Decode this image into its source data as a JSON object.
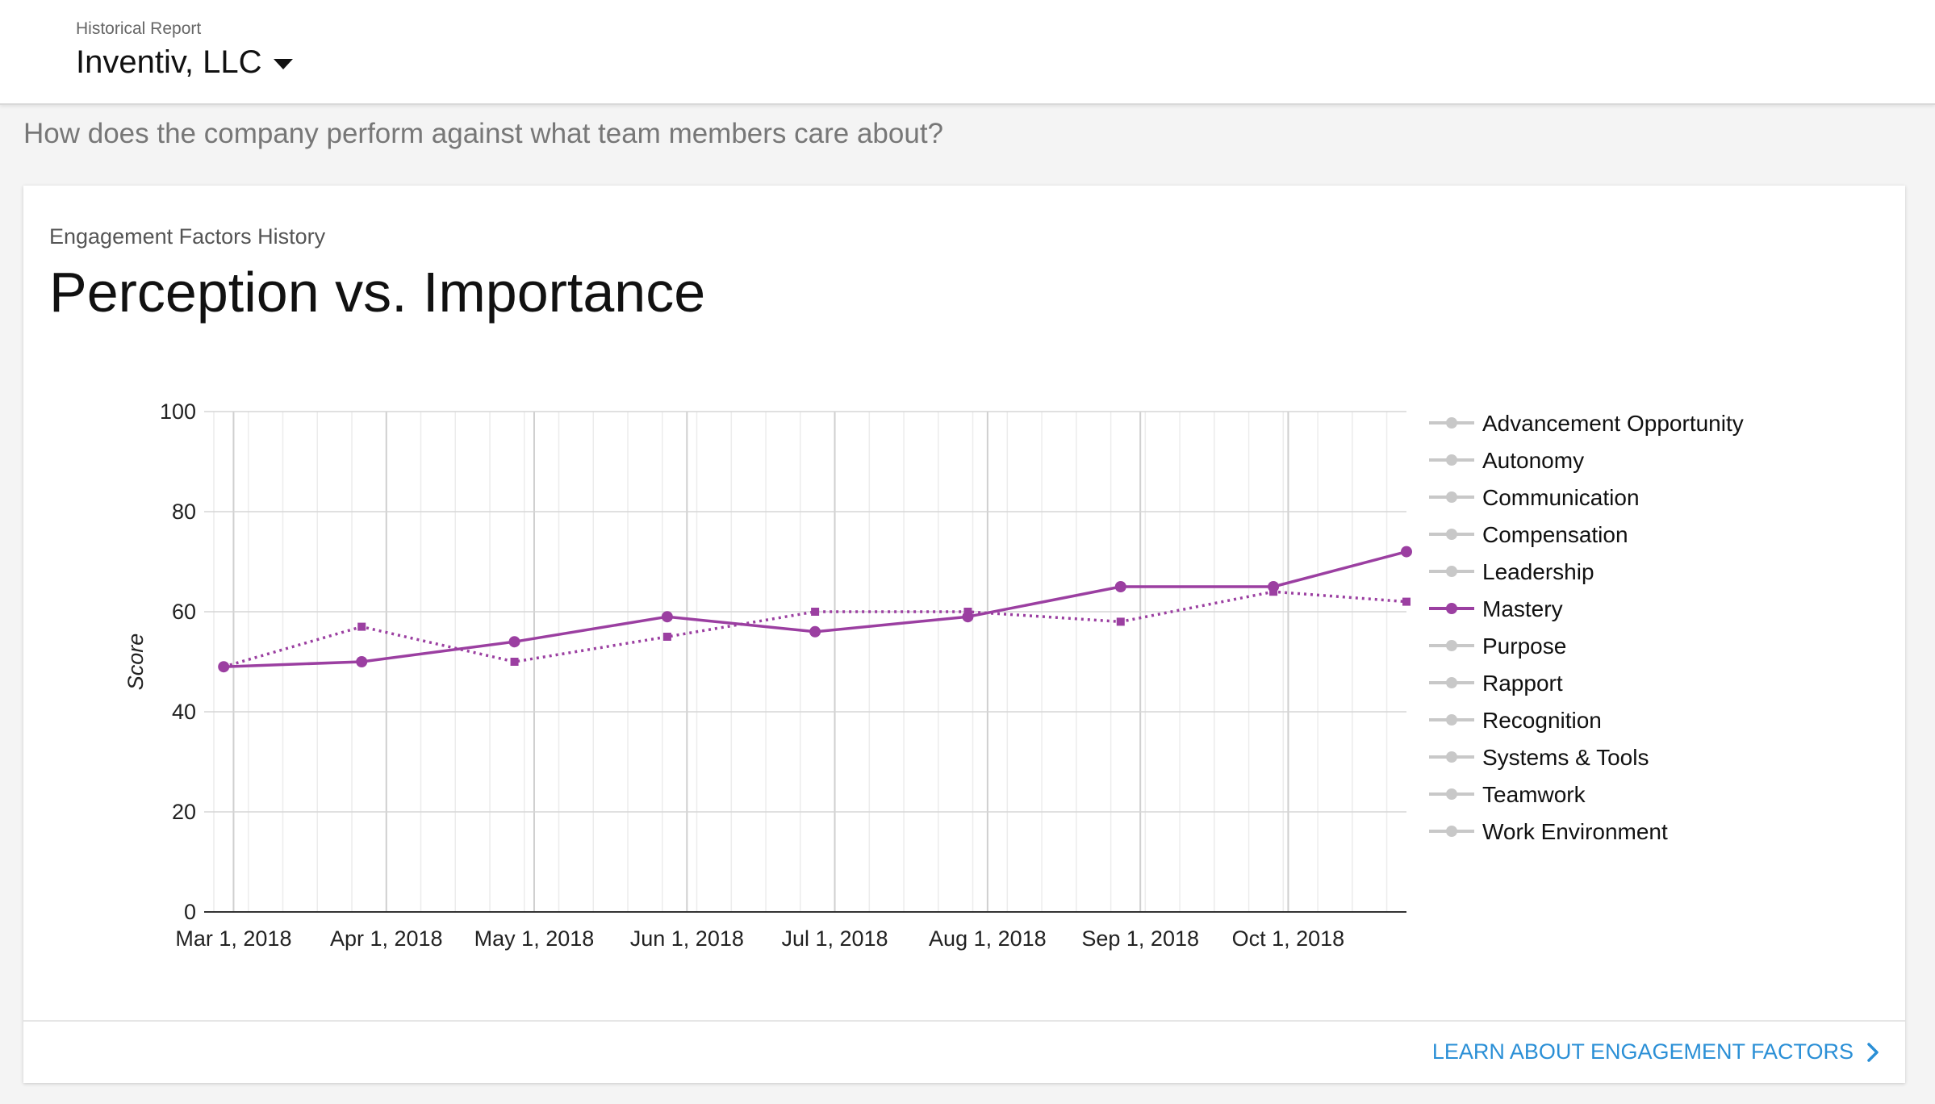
{
  "header": {
    "report_label": "Historical Report",
    "company": "Inventiv, LLC"
  },
  "question": "How does the company perform against what team members care about?",
  "card": {
    "subtitle": "Engagement Factors History",
    "title": "Perception vs. Importance",
    "footer_link": "LEARN ABOUT ENGAGEMENT FACTORS"
  },
  "icons": {
    "dropdown": "caret-down-icon",
    "link_arrow": "chevron-right-icon"
  },
  "colors": {
    "active_series": "#9b3fa1",
    "inactive_series": "#c8c8c8",
    "link": "#2a8fd6",
    "grid": "#dddddd"
  },
  "chart_data": {
    "type": "line",
    "title": "Perception vs. Importance",
    "ylabel": "Score",
    "xlabel": "",
    "ylim": [
      0,
      100
    ],
    "yticks": [
      0,
      20,
      40,
      60,
      80,
      100
    ],
    "xlim": [
      "2018-02-25",
      "2018-10-25"
    ],
    "xticks": [
      {
        "date": "2018-03-01",
        "label": "Mar 1, 2018"
      },
      {
        "date": "2018-04-01",
        "label": "Apr 1, 2018"
      },
      {
        "date": "2018-05-01",
        "label": "May 1, 2018"
      },
      {
        "date": "2018-06-01",
        "label": "Jun 1, 2018"
      },
      {
        "date": "2018-07-01",
        "label": "Jul 1, 2018"
      },
      {
        "date": "2018-08-01",
        "label": "Aug 1, 2018"
      },
      {
        "date": "2018-09-01",
        "label": "Sep 1, 2018"
      },
      {
        "date": "2018-10-01",
        "label": "Oct 1, 2018"
      }
    ],
    "grid": true,
    "legend_placement": "right",
    "legend": [
      {
        "label": "Advancement Opportunity",
        "active": false
      },
      {
        "label": "Autonomy",
        "active": false
      },
      {
        "label": "Communication",
        "active": false
      },
      {
        "label": "Compensation",
        "active": false
      },
      {
        "label": "Leadership",
        "active": false
      },
      {
        "label": "Mastery",
        "active": true
      },
      {
        "label": "Purpose",
        "active": false
      },
      {
        "label": "Rapport",
        "active": false
      },
      {
        "label": "Recognition",
        "active": false
      },
      {
        "label": "Systems & Tools",
        "active": false
      },
      {
        "label": "Teamwork",
        "active": false
      },
      {
        "label": "Work Environment",
        "active": false
      }
    ],
    "series": [
      {
        "style": "solid",
        "marker": "circle",
        "x": [
          "2018-02-27",
          "2018-03-27",
          "2018-04-27",
          "2018-05-28",
          "2018-06-27",
          "2018-07-28",
          "2018-08-28",
          "2018-09-28",
          "2018-10-25"
        ],
        "y": [
          49,
          50,
          54,
          59,
          56,
          59,
          65,
          65,
          72
        ]
      },
      {
        "style": "dotted",
        "marker": "square",
        "x": [
          "2018-02-27",
          "2018-03-27",
          "2018-04-27",
          "2018-05-28",
          "2018-06-27",
          "2018-07-28",
          "2018-08-28",
          "2018-09-28",
          "2018-10-25"
        ],
        "y": [
          49,
          57,
          50,
          55,
          60,
          60,
          58,
          64,
          62
        ]
      }
    ]
  }
}
